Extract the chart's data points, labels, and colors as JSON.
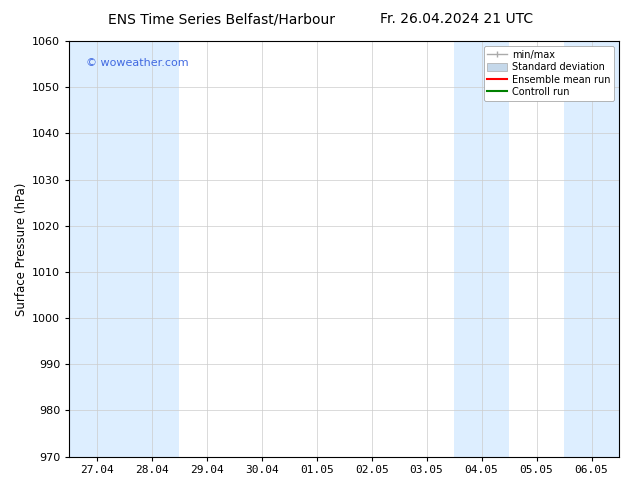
{
  "title_left": "ENS Time Series Belfast/Harbour",
  "title_right": "Fr. 26.04.2024 21 UTC",
  "ylabel": "Surface Pressure (hPa)",
  "ylim": [
    970,
    1060
  ],
  "yticks": [
    970,
    980,
    990,
    1000,
    1010,
    1020,
    1030,
    1040,
    1050,
    1060
  ],
  "x_labels": [
    "27.04",
    "28.04",
    "29.04",
    "30.04",
    "01.05",
    "02.05",
    "03.05",
    "04.05",
    "05.05",
    "06.05"
  ],
  "x_positions": [
    0,
    1,
    2,
    3,
    4,
    5,
    6,
    7,
    8,
    9
  ],
  "xlim": [
    -0.5,
    9.5
  ],
  "shaded_bands": [
    {
      "x_start": -0.5,
      "x_end": 1.5,
      "color": "#ddeeff"
    },
    {
      "x_start": 6.5,
      "x_end": 7.5,
      "color": "#ddeeff"
    },
    {
      "x_start": 8.5,
      "x_end": 9.5,
      "color": "#ddeeff"
    }
  ],
  "watermark": "© woweather.com",
  "watermark_color": "#4169E1",
  "legend_items": [
    {
      "label": "min/max",
      "color": "#aaaaaa",
      "style": "line_with_caps"
    },
    {
      "label": "Standard deviation",
      "color": "#c5d8ea",
      "style": "band"
    },
    {
      "label": "Ensemble mean run",
      "color": "red",
      "style": "line"
    },
    {
      "label": "Controll run",
      "color": "green",
      "style": "line"
    }
  ],
  "bg_color": "#ffffff",
  "plot_bg_color": "#ffffff",
  "grid_color": "#cccccc",
  "title_fontsize": 10,
  "tick_fontsize": 8,
  "ylabel_fontsize": 8.5
}
